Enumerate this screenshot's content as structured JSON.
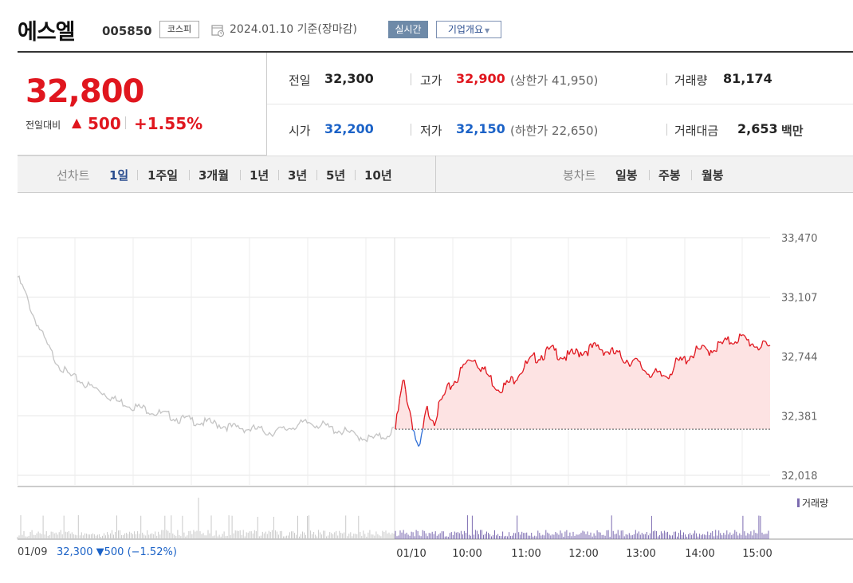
{
  "header": {
    "title": "에스엘",
    "code": "005850",
    "market": "코스피",
    "base_date": "2024.01.10 기준(장마감)",
    "realtime_label": "실시간",
    "overview_label": "기업개요"
  },
  "price": {
    "current": "32,800",
    "compare_label": "전일대비",
    "compare_arrow": "▲",
    "compare_value": "500",
    "compare_pct": "+1.55%"
  },
  "stats": {
    "prev_label": "전일",
    "prev_value": "32,300",
    "high_label": "고가",
    "high_value": "32,900",
    "upper_limit": "(상한가 41,950)",
    "volume_label": "거래량",
    "volume_value": "81,174",
    "open_label": "시가",
    "open_value": "32,200",
    "low_label": "저가",
    "low_value": "32,150",
    "lower_limit": "(하한가 22,650)",
    "amount_label": "거래대금",
    "amount_value": "2,653",
    "amount_unit": "백만"
  },
  "periods": {
    "line_label": "선차트",
    "line_items": [
      "1일",
      "1주일",
      "3개월",
      "1년",
      "3년",
      "5년",
      "10년"
    ],
    "candle_label": "봉차트",
    "candle_items": [
      "일봉",
      "주봉",
      "월봉"
    ]
  },
  "chart_data": {
    "type": "line",
    "y_ticks": [
      "33,470",
      "33,107",
      "32,744",
      "32,381",
      "32,018"
    ],
    "ylim": [
      32018,
      33470
    ],
    "x_ticks": [
      "01/10",
      "10:00",
      "11:00",
      "12:00",
      "13:00",
      "14:00",
      "15:00"
    ],
    "baseline": 32300,
    "volume_label": "거래량",
    "prev_day": {
      "date": "01/09",
      "close_text": "32,300 ▼500 (−1.52%)",
      "values": [
        33230,
        33130,
        33000,
        32900,
        32800,
        32720,
        32660,
        32620,
        32600,
        32570,
        32550,
        32530,
        32500,
        32470,
        32460,
        32440,
        32430,
        32420,
        32400,
        32390,
        32380,
        32360,
        32360,
        32350,
        32340,
        32340,
        32330,
        32320,
        32310,
        32310,
        32300,
        32300,
        32290,
        32280,
        32290,
        32300,
        32320,
        32330,
        32340,
        32330,
        32320,
        32300,
        32290,
        32280,
        32260,
        32250,
        32240,
        32250,
        32260,
        32300
      ]
    },
    "today": {
      "series_color": "#e0161e",
      "values": [
        32300,
        32600,
        32380,
        32150,
        32420,
        32360,
        32480,
        32560,
        32620,
        32700,
        32740,
        32680,
        32620,
        32560,
        32560,
        32600,
        32660,
        32700,
        32740,
        32760,
        32780,
        32760,
        32740,
        32760,
        32780,
        32790,
        32800,
        32780,
        32760,
        32740,
        32720,
        32700,
        32660,
        32640,
        32620,
        32640,
        32700,
        32720,
        32760,
        32780,
        32780,
        32800,
        32820,
        32840,
        32860,
        32840,
        32820,
        32800,
        32800
      ]
    }
  }
}
